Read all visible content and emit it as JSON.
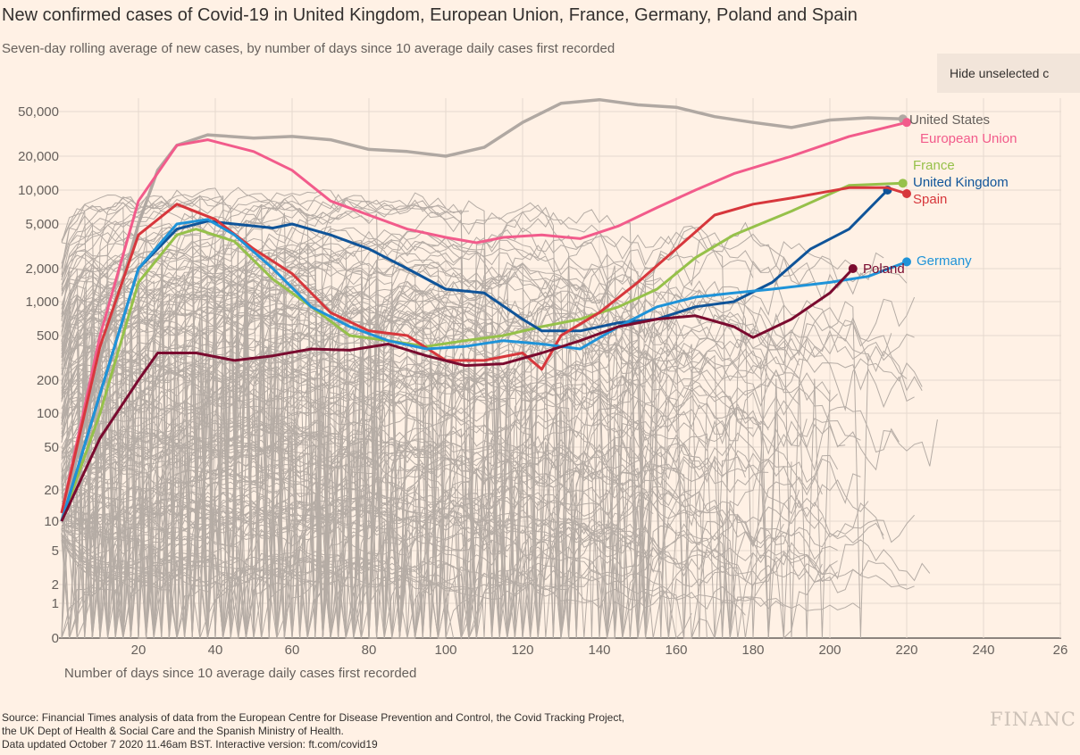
{
  "title": "New confirmed cases of Covid-19 in United Kingdom, European Union, France, Germany, Poland and Spain",
  "subtitle": "Seven-day rolling average of new cases, by number of days since 10 average daily cases first recorded",
  "hide_button": "Hide unselected c",
  "source_lines": [
    "Source: Financial Times analysis of data from the European Centre for Disease Prevention and Control, the Covid Tracking Project,",
    "the UK Dept of Health & Social Care and the Spanish Ministry of Health.",
    "Data updated October 7 2020 11.46am BST. Interactive version: ft.com/covid19"
  ],
  "logo": "FINANC",
  "colors": {
    "background": "#fff1e5",
    "grid": "#e6d9ce",
    "other": "#b5aca5"
  },
  "chart_data": {
    "type": "line",
    "title": "New confirmed cases of Covid-19 in United Kingdom, European Union, France, Germany, Poland and Spain",
    "xlabel": "Number of days since 10 average daily cases first recorded",
    "ylabel": "",
    "yscale": "symlog",
    "xlim": [
      0,
      260
    ],
    "ylim": [
      0,
      60000
    ],
    "grid": true,
    "x_ticks": [
      "20",
      "40",
      "60",
      "80",
      "100",
      "120",
      "140",
      "160",
      "180",
      "200",
      "220",
      "240",
      "26"
    ],
    "y_ticks": [
      "50,000",
      "20,000",
      "10,000",
      "5,000",
      "2,000",
      "1,000",
      "500",
      "200",
      "100",
      "50",
      "20",
      "10",
      "5",
      "2",
      "1",
      "0"
    ],
    "y_tick_values": [
      50000,
      20000,
      10000,
      5000,
      2000,
      1000,
      500,
      200,
      100,
      50,
      20,
      10,
      5,
      2,
      1,
      0
    ],
    "series": [
      {
        "name": "United States",
        "color": "#b0a8a2",
        "width": 3.5,
        "points": [
          [
            0,
            10
          ],
          [
            10,
            300
          ],
          [
            20,
            5000
          ],
          [
            25,
            15000
          ],
          [
            30,
            25000
          ],
          [
            38,
            31000
          ],
          [
            50,
            29000
          ],
          [
            60,
            30000
          ],
          [
            70,
            28000
          ],
          [
            80,
            23000
          ],
          [
            90,
            22000
          ],
          [
            100,
            20000
          ],
          [
            110,
            24000
          ],
          [
            120,
            40000
          ],
          [
            130,
            60000
          ],
          [
            140,
            65000
          ],
          [
            150,
            58000
          ],
          [
            160,
            55000
          ],
          [
            170,
            45000
          ],
          [
            180,
            40000
          ],
          [
            190,
            36000
          ],
          [
            200,
            42000
          ],
          [
            210,
            44000
          ],
          [
            219,
            43000
          ]
        ]
      },
      {
        "name": "European Union",
        "color": "#f25b8b",
        "width": 3,
        "points": [
          [
            0,
            12
          ],
          [
            10,
            500
          ],
          [
            20,
            8000
          ],
          [
            30,
            25000
          ],
          [
            38,
            28000
          ],
          [
            50,
            22000
          ],
          [
            60,
            15000
          ],
          [
            70,
            8000
          ],
          [
            80,
            6000
          ],
          [
            90,
            4500
          ],
          [
            100,
            3800
          ],
          [
            108,
            3400
          ],
          [
            115,
            3800
          ],
          [
            125,
            4000
          ],
          [
            135,
            3700
          ],
          [
            145,
            4800
          ],
          [
            155,
            7000
          ],
          [
            165,
            10000
          ],
          [
            175,
            14000
          ],
          [
            190,
            20000
          ],
          [
            205,
            30000
          ],
          [
            220,
            40000
          ]
        ]
      },
      {
        "name": "France",
        "color": "#96c14a",
        "width": 3,
        "points": [
          [
            0,
            10
          ],
          [
            10,
            100
          ],
          [
            20,
            1500
          ],
          [
            30,
            4000
          ],
          [
            35,
            4500
          ],
          [
            45,
            3500
          ],
          [
            55,
            1600
          ],
          [
            65,
            900
          ],
          [
            75,
            500
          ],
          [
            85,
            450
          ],
          [
            95,
            400
          ],
          [
            105,
            450
          ],
          [
            115,
            500
          ],
          [
            125,
            600
          ],
          [
            135,
            700
          ],
          [
            145,
            900
          ],
          [
            155,
            1300
          ],
          [
            165,
            2500
          ],
          [
            175,
            4000
          ],
          [
            190,
            6500
          ],
          [
            205,
            11000
          ],
          [
            219,
            11500
          ]
        ]
      },
      {
        "name": "United Kingdom",
        "color": "#0f5499",
        "width": 3,
        "points": [
          [
            0,
            10
          ],
          [
            10,
            150
          ],
          [
            20,
            2000
          ],
          [
            30,
            4500
          ],
          [
            38,
            5300
          ],
          [
            45,
            5000
          ],
          [
            55,
            4600
          ],
          [
            60,
            5000
          ],
          [
            70,
            4000
          ],
          [
            80,
            3000
          ],
          [
            90,
            2000
          ],
          [
            100,
            1300
          ],
          [
            110,
            1200
          ],
          [
            120,
            700
          ],
          [
            125,
            550
          ],
          [
            135,
            550
          ],
          [
            145,
            650
          ],
          [
            155,
            700
          ],
          [
            165,
            900
          ],
          [
            175,
            1000
          ],
          [
            185,
            1500
          ],
          [
            195,
            3000
          ],
          [
            205,
            4500
          ],
          [
            215,
            10000
          ]
        ]
      },
      {
        "name": "Spain",
        "color": "#d7373c",
        "width": 3,
        "points": [
          [
            0,
            12
          ],
          [
            10,
            400
          ],
          [
            20,
            4000
          ],
          [
            30,
            7500
          ],
          [
            40,
            5500
          ],
          [
            50,
            3000
          ],
          [
            60,
            1800
          ],
          [
            70,
            800
          ],
          [
            80,
            550
          ],
          [
            90,
            500
          ],
          [
            100,
            300
          ],
          [
            110,
            300
          ],
          [
            120,
            350
          ],
          [
            125,
            250
          ],
          [
            130,
            500
          ],
          [
            140,
            800
          ],
          [
            150,
            1500
          ],
          [
            160,
            3000
          ],
          [
            170,
            6000
          ],
          [
            180,
            7500
          ],
          [
            190,
            8500
          ],
          [
            205,
            10500
          ],
          [
            215,
            10500
          ],
          [
            220,
            9300
          ]
        ]
      },
      {
        "name": "Germany",
        "color": "#1f93d8",
        "width": 3,
        "points": [
          [
            0,
            10
          ],
          [
            10,
            150
          ],
          [
            20,
            2000
          ],
          [
            30,
            5000
          ],
          [
            38,
            5500
          ],
          [
            45,
            4000
          ],
          [
            55,
            2000
          ],
          [
            65,
            900
          ],
          [
            75,
            600
          ],
          [
            85,
            450
          ],
          [
            95,
            380
          ],
          [
            105,
            400
          ],
          [
            115,
            450
          ],
          [
            125,
            420
          ],
          [
            135,
            380
          ],
          [
            145,
            600
          ],
          [
            155,
            900
          ],
          [
            165,
            1100
          ],
          [
            175,
            1200
          ],
          [
            185,
            1300
          ],
          [
            200,
            1500
          ],
          [
            210,
            1700
          ],
          [
            220,
            2300
          ]
        ]
      },
      {
        "name": "Poland",
        "color": "#7a0b2f",
        "width": 3,
        "points": [
          [
            0,
            10
          ],
          [
            10,
            60
          ],
          [
            20,
            200
          ],
          [
            25,
            350
          ],
          [
            35,
            350
          ],
          [
            45,
            300
          ],
          [
            55,
            330
          ],
          [
            65,
            380
          ],
          [
            75,
            370
          ],
          [
            85,
            420
          ],
          [
            95,
            330
          ],
          [
            105,
            270
          ],
          [
            115,
            280
          ],
          [
            125,
            350
          ],
          [
            135,
            450
          ],
          [
            145,
            600
          ],
          [
            155,
            700
          ],
          [
            165,
            750
          ],
          [
            175,
            600
          ],
          [
            180,
            480
          ],
          [
            190,
            700
          ],
          [
            200,
            1200
          ],
          [
            206,
            2000
          ]
        ]
      }
    ]
  }
}
